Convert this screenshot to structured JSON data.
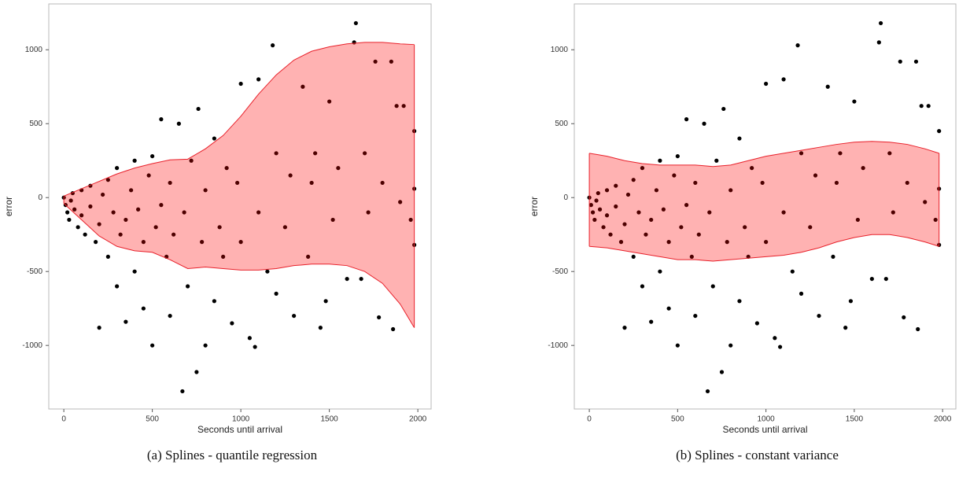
{
  "chart_data": [
    {
      "type": "scatter",
      "caption": "(a) Splines - quantile regression",
      "xlabel": "Seconds until arrival",
      "ylabel": "error",
      "xlim": [
        -85,
        2075
      ],
      "ylim": [
        -1430,
        1310
      ],
      "xticks": [
        0,
        500,
        1000,
        1500,
        2000
      ],
      "yticks": [
        -1000,
        -500,
        0,
        500,
        1000
      ],
      "points": {
        "color": "#000000",
        "x": [
          0,
          10,
          20,
          30,
          40,
          50,
          60,
          80,
          100,
          100,
          120,
          150,
          150,
          180,
          200,
          200,
          220,
          250,
          250,
          280,
          300,
          300,
          320,
          350,
          350,
          380,
          400,
          400,
          420,
          450,
          450,
          480,
          500,
          500,
          520,
          550,
          550,
          580,
          600,
          600,
          620,
          650,
          670,
          680,
          700,
          720,
          750,
          760,
          780,
          800,
          800,
          850,
          850,
          880,
          900,
          920,
          950,
          980,
          1000,
          1000,
          1050,
          1080,
          1100,
          1100,
          1150,
          1180,
          1200,
          1200,
          1250,
          1280,
          1300,
          1350,
          1380,
          1400,
          1420,
          1450,
          1480,
          1500,
          1520,
          1550,
          1600,
          1640,
          1650,
          1680,
          1700,
          1720,
          1760,
          1780,
          1800,
          1850,
          1860,
          1880,
          1900,
          1920,
          1960,
          1980,
          1980,
          1980
        ],
        "y": [
          0,
          -50,
          -100,
          -150,
          -20,
          30,
          -80,
          -200,
          50,
          -120,
          -250,
          -60,
          80,
          -300,
          -880,
          -180,
          20,
          -400,
          120,
          -100,
          -600,
          200,
          -250,
          -150,
          -840,
          50,
          -500,
          250,
          -80,
          -300,
          -750,
          150,
          -1000,
          280,
          -200,
          530,
          -50,
          -400,
          -800,
          100,
          -250,
          500,
          -1310,
          -100,
          -600,
          250,
          -1180,
          600,
          -300,
          -1000,
          50,
          400,
          -700,
          -200,
          -400,
          200,
          -850,
          100,
          770,
          -300,
          -950,
          -1010,
          800,
          -100,
          -500,
          1030,
          300,
          -650,
          -200,
          150,
          -800,
          750,
          -400,
          100,
          300,
          -880,
          -700,
          650,
          -150,
          200,
          -550,
          1050,
          1180,
          -550,
          300,
          -100,
          920,
          -810,
          100,
          920,
          -890,
          620,
          -30,
          620,
          -150,
          450,
          60,
          -320
        ]
      },
      "band": {
        "fill": "#ff0000",
        "line_color": "#e8202a",
        "x": [
          0,
          100,
          200,
          300,
          400,
          500,
          600,
          700,
          800,
          900,
          1000,
          1100,
          1200,
          1300,
          1400,
          1500,
          1600,
          1700,
          1800,
          1900,
          1980
        ],
        "upper": [
          10,
          60,
          110,
          160,
          200,
          230,
          255,
          260,
          330,
          420,
          550,
          700,
          830,
          930,
          990,
          1020,
          1040,
          1050,
          1050,
          1040,
          1035
        ],
        "lower": [
          -40,
          -150,
          -260,
          -330,
          -360,
          -370,
          -420,
          -480,
          -470,
          -480,
          -490,
          -490,
          -480,
          -460,
          -450,
          -450,
          -460,
          -500,
          -580,
          -720,
          -880
        ]
      }
    },
    {
      "type": "scatter",
      "caption": "(b) Splines - constant variance",
      "xlabel": "Seconds until arrival",
      "ylabel": "error",
      "xlim": [
        -85,
        2075
      ],
      "ylim": [
        -1430,
        1310
      ],
      "xticks": [
        0,
        500,
        1000,
        1500,
        2000
      ],
      "yticks": [
        -1000,
        -500,
        0,
        500,
        1000
      ],
      "points": {
        "color": "#000000",
        "x": [
          0,
          10,
          20,
          30,
          40,
          50,
          60,
          80,
          100,
          100,
          120,
          150,
          150,
          180,
          200,
          200,
          220,
          250,
          250,
          280,
          300,
          300,
          320,
          350,
          350,
          380,
          400,
          400,
          420,
          450,
          450,
          480,
          500,
          500,
          520,
          550,
          550,
          580,
          600,
          600,
          620,
          650,
          670,
          680,
          700,
          720,
          750,
          760,
          780,
          800,
          800,
          850,
          850,
          880,
          900,
          920,
          950,
          980,
          1000,
          1000,
          1050,
          1080,
          1100,
          1100,
          1150,
          1180,
          1200,
          1200,
          1250,
          1280,
          1300,
          1350,
          1380,
          1400,
          1420,
          1450,
          1480,
          1500,
          1520,
          1550,
          1600,
          1640,
          1650,
          1680,
          1700,
          1720,
          1760,
          1780,
          1800,
          1850,
          1860,
          1880,
          1900,
          1920,
          1960,
          1980,
          1980,
          1980
        ],
        "y": [
          0,
          -50,
          -100,
          -150,
          -20,
          30,
          -80,
          -200,
          50,
          -120,
          -250,
          -60,
          80,
          -300,
          -880,
          -180,
          20,
          -400,
          120,
          -100,
          -600,
          200,
          -250,
          -150,
          -840,
          50,
          -500,
          250,
          -80,
          -300,
          -750,
          150,
          -1000,
          280,
          -200,
          530,
          -50,
          -400,
          -800,
          100,
          -250,
          500,
          -1310,
          -100,
          -600,
          250,
          -1180,
          600,
          -300,
          -1000,
          50,
          400,
          -700,
          -200,
          -400,
          200,
          -850,
          100,
          770,
          -300,
          -950,
          -1010,
          800,
          -100,
          -500,
          1030,
          300,
          -650,
          -200,
          150,
          -800,
          750,
          -400,
          100,
          300,
          -880,
          -700,
          650,
          -150,
          200,
          -550,
          1050,
          1180,
          -550,
          300,
          -100,
          920,
          -810,
          100,
          920,
          -890,
          620,
          -30,
          620,
          -150,
          450,
          60,
          -320
        ]
      },
      "band": {
        "fill": "#ff0000",
        "line_color": "#e8202a",
        "x": [
          0,
          100,
          200,
          300,
          400,
          500,
          600,
          700,
          800,
          900,
          1000,
          1100,
          1200,
          1300,
          1400,
          1500,
          1600,
          1700,
          1800,
          1900,
          1980
        ],
        "upper": [
          300,
          280,
          250,
          230,
          220,
          220,
          220,
          210,
          220,
          250,
          280,
          300,
          320,
          340,
          360,
          375,
          380,
          375,
          360,
          330,
          300
        ],
        "lower": [
          -330,
          -340,
          -360,
          -380,
          -400,
          -420,
          -420,
          -430,
          -420,
          -410,
          -400,
          -390,
          -370,
          -340,
          -300,
          -270,
          -250,
          -250,
          -270,
          -300,
          -330
        ]
      }
    }
  ]
}
